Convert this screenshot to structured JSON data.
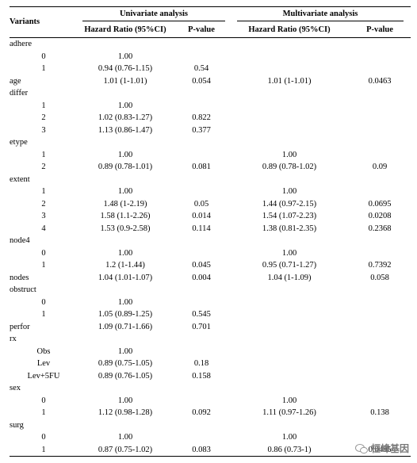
{
  "header": {
    "variants": "Variants",
    "univariate": "Univariate analysis",
    "multivariate": "Multivariate analysis",
    "columns": [
      "Hazard Ratio (95%CI)",
      "P-value",
      "Hazard Ratio (95%CI)",
      "P-value"
    ]
  },
  "variants": [
    {
      "name": "adhere",
      "levels": [
        [
          "0",
          "1.00",
          null,
          null,
          null
        ],
        [
          "1",
          "0.94 (0.76-1.15)",
          "0.54",
          null,
          null
        ]
      ]
    },
    {
      "name": "age",
      "cells": [
        "1.01 (1-1.01)",
        "0.054",
        "1.01 (1-1.01)",
        "0.0463"
      ]
    },
    {
      "name": "differ",
      "levels": [
        [
          "1",
          "1.00",
          null,
          null,
          null
        ],
        [
          "2",
          "1.02 (0.83-1.27)",
          "0.822",
          null,
          null
        ],
        [
          "3",
          "1.13 (0.86-1.47)",
          "0.377",
          null,
          null
        ]
      ]
    },
    {
      "name": "etype",
      "levels": [
        [
          "1",
          "1.00",
          null,
          "1.00",
          null
        ],
        [
          "2",
          "0.89 (0.78-1.01)",
          "0.081",
          "0.89 (0.78-1.02)",
          "0.09"
        ]
      ]
    },
    {
      "name": "extent",
      "levels": [
        [
          "1",
          "1.00",
          null,
          "1.00",
          null
        ],
        [
          "2",
          "1.48 (1-2.19)",
          "0.05",
          "1.44 (0.97-2.15)",
          "0.0695"
        ],
        [
          "3",
          "1.58 (1.1-2.26)",
          "0.014",
          "1.54 (1.07-2.23)",
          "0.0208"
        ],
        [
          "4",
          "1.53 (0.9-2.58)",
          "0.114",
          "1.38 (0.81-2.35)",
          "0.2368"
        ]
      ]
    },
    {
      "name": "node4",
      "levels": [
        [
          "0",
          "1.00",
          null,
          "1.00",
          null
        ],
        [
          "1",
          "1.2 (1-1.44)",
          "0.045",
          "0.95 (0.71-1.27)",
          "0.7392"
        ]
      ]
    },
    {
      "name": "nodes",
      "cells": [
        "1.04 (1.01-1.07)",
        "0.004",
        "1.04 (1-1.09)",
        "0.058"
      ]
    },
    {
      "name": "obstruct",
      "levels": [
        [
          "0",
          "1.00",
          null,
          null,
          null
        ],
        [
          "1",
          "1.05 (0.89-1.25)",
          "0.545",
          null,
          null
        ]
      ]
    },
    {
      "name": "perfor",
      "cells": [
        "1.09 (0.71-1.66)",
        "0.701",
        null,
        null
      ]
    },
    {
      "name": "rx",
      "levels": [
        [
          "Obs",
          "1.00",
          null,
          null,
          null
        ],
        [
          "Lev",
          "0.89 (0.75-1.05)",
          "0.18",
          null,
          null
        ],
        [
          "Lev+5FU",
          "0.89 (0.76-1.05)",
          "0.158",
          null,
          null
        ]
      ]
    },
    {
      "name": "sex",
      "levels": [
        [
          "0",
          "1.00",
          null,
          "1.00",
          null
        ],
        [
          "1",
          "1.12 (0.98-1.28)",
          "0.092",
          "1.11 (0.97-1.26)",
          "0.138"
        ]
      ]
    },
    {
      "name": "surg",
      "levels": [
        [
          "0",
          "1.00",
          null,
          "1.00",
          null
        ],
        [
          "1",
          "0.87 (0.75-1.02)",
          "0.083",
          "0.86 (0.73-1)",
          "0.0495"
        ]
      ]
    }
  ],
  "watermark": "桓峰基因"
}
